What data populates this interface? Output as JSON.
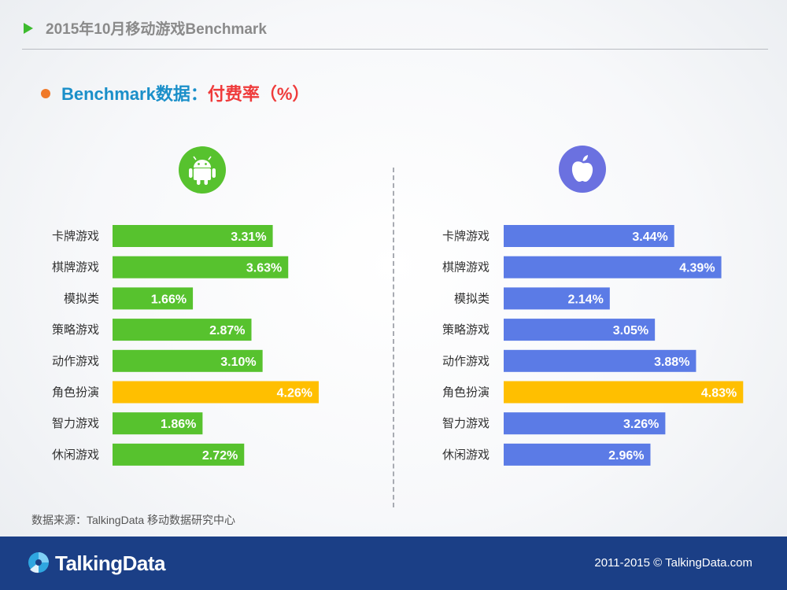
{
  "header": {
    "title": "2015年10月移动游戏Benchmark"
  },
  "subtitle": {
    "lead": "Benchmark数据：",
    "rest": "付费率（%）"
  },
  "colors": {
    "android": "#57c22e",
    "ios": "#5b7be6",
    "highlight": "#ffbf00"
  },
  "icons": {
    "android": "android-icon",
    "ios": "apple-icon"
  },
  "chart_data": [
    {
      "type": "bar",
      "orientation": "horizontal",
      "platform": "Android",
      "categories": [
        "卡牌游戏",
        "棋牌游戏",
        "模拟类",
        "策略游戏",
        "动作游戏",
        "角色扮演",
        "智力游戏",
        "休闲游戏"
      ],
      "values": [
        3.31,
        3.63,
        1.66,
        2.87,
        3.1,
        4.26,
        1.86,
        2.72
      ],
      "labels": [
        "3.31%",
        "3.63%",
        "1.66%",
        "2.87%",
        "3.10%",
        "4.26%",
        "1.86%",
        "2.72%"
      ],
      "highlight_category": "角色扮演"
    },
    {
      "type": "bar",
      "orientation": "horizontal",
      "platform": "iOS",
      "categories": [
        "卡牌游戏",
        "棋牌游戏",
        "模拟类",
        "策略游戏",
        "动作游戏",
        "角色扮演",
        "智力游戏",
        "休闲游戏"
      ],
      "values": [
        3.44,
        4.39,
        2.14,
        3.05,
        3.88,
        4.83,
        3.26,
        2.96
      ],
      "labels": [
        "3.44%",
        "4.39%",
        "2.14%",
        "3.05%",
        "3.88%",
        "4.83%",
        "3.26%",
        "2.96%"
      ],
      "highlight_category": "角色扮演"
    }
  ],
  "source": "数据来源：TalkingData 移动数据研究中心",
  "footer": {
    "brand": "TalkingData",
    "copyright": "2011-2015 © TalkingData.com"
  }
}
